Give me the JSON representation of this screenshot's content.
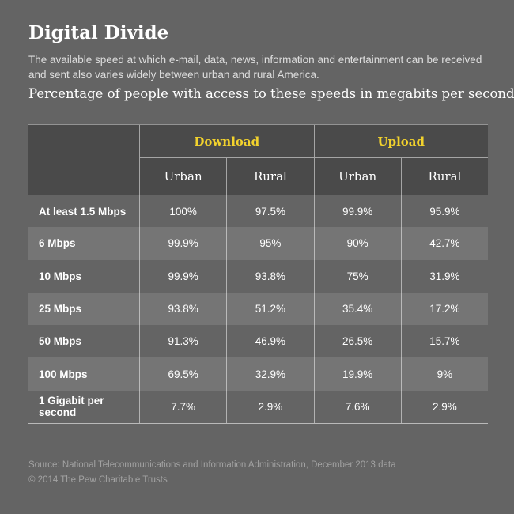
{
  "page": {
    "title": "Digital Divide",
    "subtitle": "The available speed at which e-mail, data, news, information and entertainment can be received and sent also varies widely between urban and rural America.",
    "lead": "Percentage of people with access to these speeds in megabits per second:"
  },
  "colors": {
    "background": "#646464",
    "header_cell": "#4a4a4a",
    "row_highlight": "#757575",
    "accent_yellow": "#f2d22d",
    "grid_line": "#a5a5a5",
    "footer_text": "#a2a2a2"
  },
  "table": {
    "groups": {
      "download": "Download",
      "upload": "Upload"
    },
    "subheaders": [
      "Urban",
      "Rural",
      "Urban",
      "Rural"
    ],
    "rows": [
      {
        "label": "At least 1.5 Mbps",
        "values": [
          "100%",
          "97.5%",
          "99.9%",
          "95.9%"
        ]
      },
      {
        "label": "6 Mbps",
        "values": [
          "99.9%",
          "95%",
          "90%",
          "42.7%"
        ]
      },
      {
        "label": "10 Mbps",
        "values": [
          "99.9%",
          "93.8%",
          "75%",
          "31.9%"
        ]
      },
      {
        "label": "25 Mbps",
        "values": [
          "93.8%",
          "51.2%",
          "35.4%",
          "17.2%"
        ]
      },
      {
        "label": "50 Mbps",
        "values": [
          "91.3%",
          "46.9%",
          "26.5%",
          "15.7%"
        ]
      },
      {
        "label": "100 Mbps",
        "values": [
          "69.5%",
          "32.9%",
          "19.9%",
          "9%"
        ]
      },
      {
        "label": "1 Gigabit per second",
        "values": [
          "7.7%",
          "2.9%",
          "7.6%",
          "2.9%"
        ]
      }
    ]
  },
  "footer": {
    "source": "Source: National Telecommunications and Information Administration, December 2013 data",
    "copyright": "© 2014 The Pew Charitable Trusts"
  },
  "chart_data": {
    "type": "table",
    "title": "Digital Divide",
    "subtitle": "Percentage of people with access to these speeds in megabits per second",
    "column_groups": [
      "Download",
      "Upload"
    ],
    "columns": [
      "Download Urban",
      "Download Rural",
      "Upload Urban",
      "Upload Rural"
    ],
    "row_labels": [
      "At least 1.5 Mbps",
      "6 Mbps",
      "10 Mbps",
      "25 Mbps",
      "50 Mbps",
      "100 Mbps",
      "1 Gigabit per second"
    ],
    "values_percent": [
      [
        100,
        97.5,
        99.9,
        95.9
      ],
      [
        99.9,
        95,
        90,
        42.7
      ],
      [
        99.9,
        93.8,
        75,
        31.9
      ],
      [
        93.8,
        51.2,
        35.4,
        17.2
      ],
      [
        91.3,
        46.9,
        26.5,
        15.7
      ],
      [
        69.5,
        32.9,
        19.9,
        9
      ],
      [
        7.7,
        2.9,
        7.6,
        2.9
      ]
    ],
    "source": "National Telecommunications and Information Administration, December 2013 data"
  }
}
